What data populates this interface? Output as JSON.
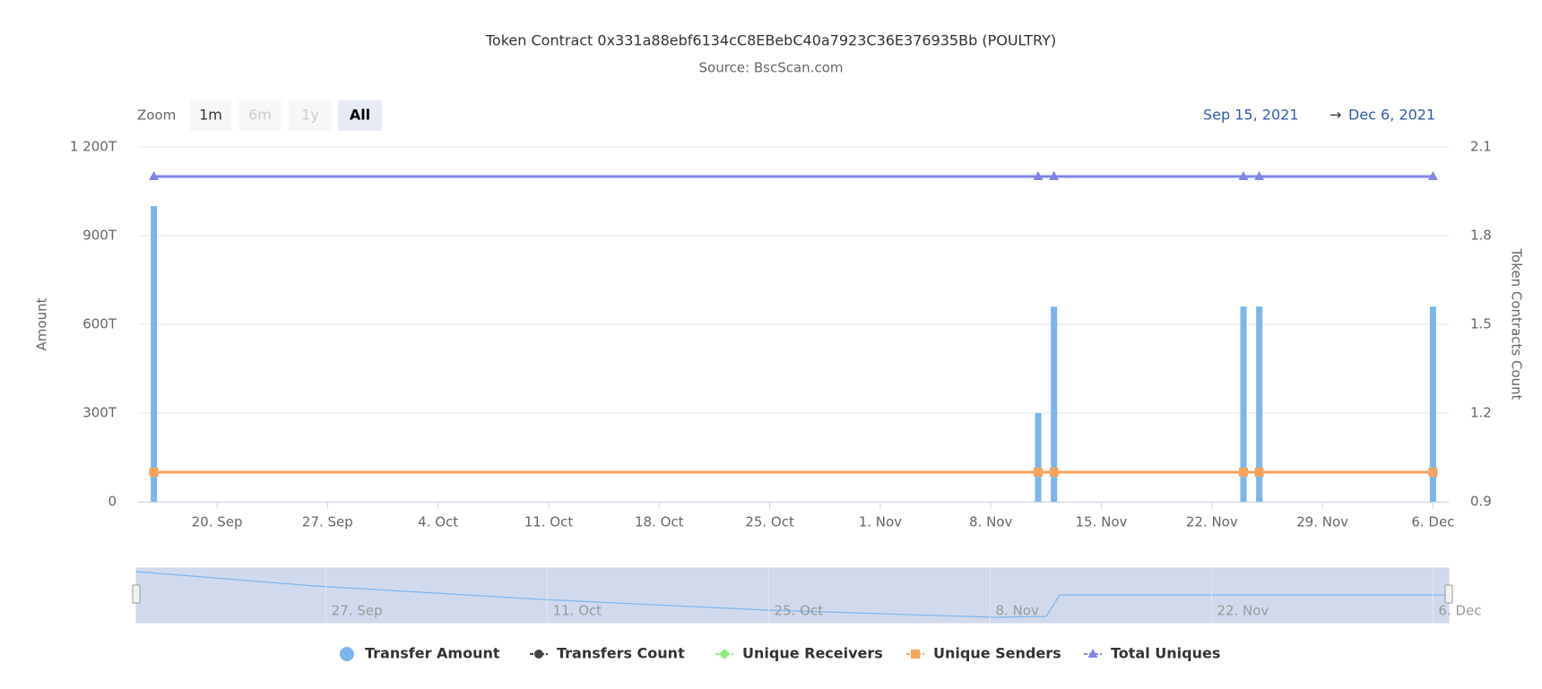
{
  "chart_data": {
    "type": "stock",
    "title": "Token Contract 0x331a88ebf6134cC8EBebC40a7923C36E376935Bb (POULTRY)",
    "subtitle": "Source: BscScan.com",
    "range_selector": {
      "zoom_label": "Zoom",
      "buttons": [
        "1m",
        "6m",
        "1y",
        "All"
      ],
      "selected": "All",
      "disabled": [
        "6m",
        "1y"
      ],
      "from": "Sep 15, 2021",
      "arrow": "→",
      "to": "Dec 6, 2021"
    },
    "y_label": "Amount",
    "y2_label": "Token Contracts Count",
    "x": [
      "2021-09-16",
      "2021-11-11",
      "2021-11-12",
      "2021-11-24",
      "2021-11-25",
      "2021-12-06"
    ],
    "xlim": [
      "2021-09-15",
      "2021-12-07"
    ],
    "xticks": [
      {
        "value": "2021-09-20",
        "label": "20. Sep"
      },
      {
        "value": "2021-09-27",
        "label": "27. Sep"
      },
      {
        "value": "2021-10-04",
        "label": "4. Oct"
      },
      {
        "value": "2021-10-11",
        "label": "11. Oct"
      },
      {
        "value": "2021-10-18",
        "label": "18. Oct"
      },
      {
        "value": "2021-10-25",
        "label": "25. Oct"
      },
      {
        "value": "2021-11-01",
        "label": "1. Nov"
      },
      {
        "value": "2021-11-08",
        "label": "8. Nov"
      },
      {
        "value": "2021-11-15",
        "label": "15. Nov"
      },
      {
        "value": "2021-11-22",
        "label": "22. Nov"
      },
      {
        "value": "2021-11-29",
        "label": "29. Nov"
      },
      {
        "value": "2021-12-06",
        "label": "6. Dec"
      }
    ],
    "navigator_xticks": [
      {
        "value": "2021-09-27",
        "label": "27. Sep"
      },
      {
        "value": "2021-10-11",
        "label": "11. Oct"
      },
      {
        "value": "2021-10-25",
        "label": "25. Oct"
      },
      {
        "value": "2021-11-08",
        "label": "8. Nov"
      },
      {
        "value": "2021-11-22",
        "label": "22. Nov"
      },
      {
        "value": "2021-12-06",
        "label": "6. Dec"
      }
    ],
    "ylim": [
      0,
      1200
    ],
    "yticks": [
      0,
      {
        "value": 300,
        "label": "300T"
      },
      {
        "value": 600,
        "label": "600T"
      },
      {
        "value": 900,
        "label": "900T"
      },
      {
        "value": 1200,
        "label": "1 200T"
      }
    ],
    "y2lim": [
      0.9,
      2.1
    ],
    "y2ticks": [
      0.9,
      1.2,
      1.5,
      1.8,
      2.1
    ],
    "grid": true,
    "series": [
      {
        "name": "Transfer Amount",
        "kind": "column",
        "color": "#7cb5ec",
        "values": [
          1000,
          300,
          660,
          660,
          660,
          660
        ]
      },
      {
        "name": "Transfers Count",
        "kind": "line",
        "marker": "circle",
        "axis": "y2",
        "color": "#434348",
        "values": [
          1,
          1,
          1,
          1,
          1,
          1
        ]
      },
      {
        "name": "Unique Receivers",
        "kind": "line",
        "marker": "diamond",
        "axis": "y2",
        "color": "#90ed7d",
        "values": [
          1,
          1,
          1,
          1,
          1,
          1
        ]
      },
      {
        "name": "Unique Senders",
        "kind": "line",
        "marker": "square",
        "axis": "y2",
        "color": "#f7a35c",
        "values": [
          1,
          1,
          1,
          1,
          1,
          1
        ]
      },
      {
        "name": "Total Uniques",
        "kind": "line",
        "marker": "triangle",
        "axis": "y2",
        "color": "#8085e9",
        "values": [
          2,
          2,
          2,
          2,
          2,
          2
        ]
      }
    ]
  }
}
